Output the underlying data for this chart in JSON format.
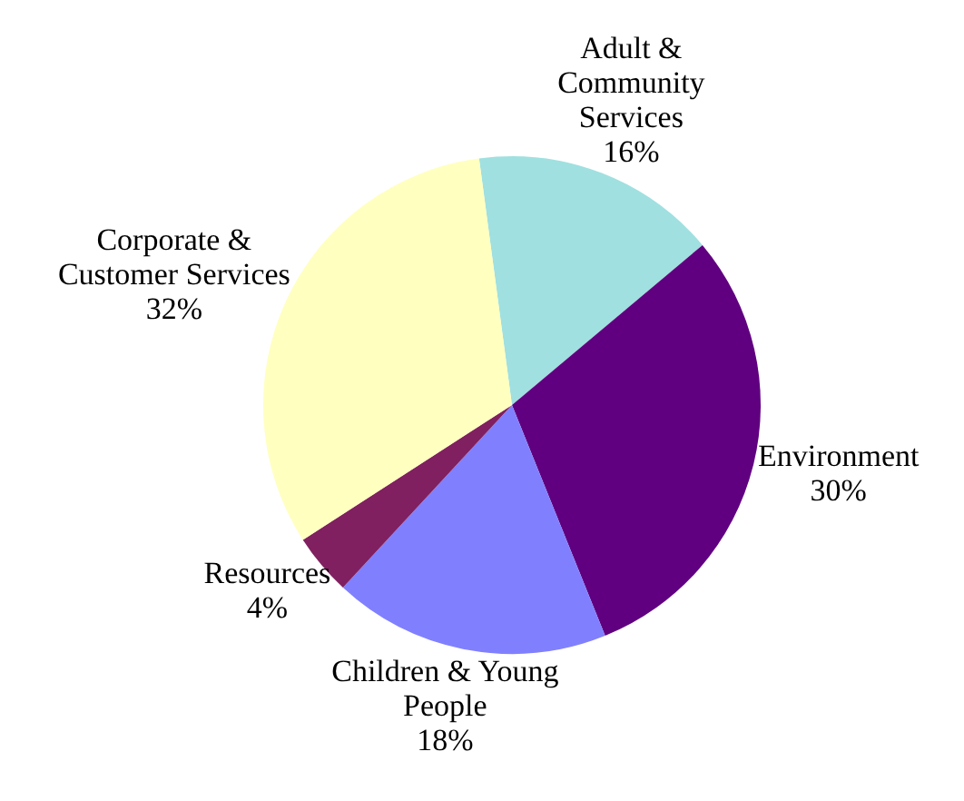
{
  "chart_data": {
    "type": "pie",
    "categories": [
      "Adult & Community Services",
      "Environment",
      "Children & Young People",
      "Resources",
      "Corporate & Customer Services"
    ],
    "values": [
      16,
      30,
      18,
      4,
      32
    ],
    "value_labels": [
      "16%",
      "30%",
      "18%",
      "4%",
      "32%"
    ],
    "colors": [
      "#a0e0e0",
      "#600080",
      "#8080ff",
      "#802060",
      "#ffffc0"
    ],
    "legend": false
  }
}
